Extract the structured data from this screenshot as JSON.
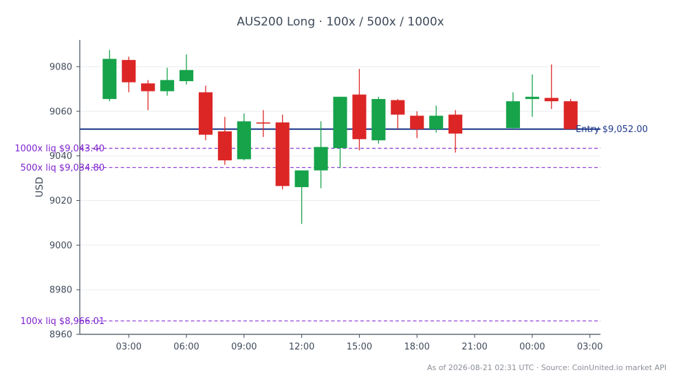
{
  "chart_data": {
    "type": "candlestick",
    "title": "AUS200 Long · 100x / 500x / 1000x",
    "ylabel": "USD",
    "xlabel": "",
    "ylim": [
      8960,
      9092
    ],
    "xlim": [
      0.45,
      27.55
    ],
    "y_ticks": [
      8960,
      8980,
      9000,
      9020,
      9040,
      9060,
      9080
    ],
    "x_ticks": [
      {
        "pos": 3,
        "label": "03:00"
      },
      {
        "pos": 6,
        "label": "06:00"
      },
      {
        "pos": 9,
        "label": "09:00"
      },
      {
        "pos": 12,
        "label": "12:00"
      },
      {
        "pos": 15,
        "label": "15:00"
      },
      {
        "pos": 18,
        "label": "18:00"
      },
      {
        "pos": 21,
        "label": "21:00"
      },
      {
        "pos": 24,
        "label": "00:00"
      },
      {
        "pos": 27,
        "label": "03:00"
      }
    ],
    "grid": "horizontal",
    "colors": {
      "up": "#16a34a",
      "down": "#dc2626",
      "entry": "#1e3a8a",
      "liq": "#7e22ce",
      "axis": "#3f4a5a",
      "grid": "#e9ecef"
    },
    "candles": [
      {
        "t": 2,
        "open": 9065.5,
        "high": 9087.5,
        "low": 9064.5,
        "close": 9083.5
      },
      {
        "t": 3,
        "open": 9083.0,
        "high": 9084.5,
        "low": 9068.5,
        "close": 9073.0
      },
      {
        "t": 4,
        "open": 9072.5,
        "high": 9074.0,
        "low": 9060.5,
        "close": 9069.0
      },
      {
        "t": 5,
        "open": 9069.0,
        "high": 9079.5,
        "low": 9067.0,
        "close": 9074.0
      },
      {
        "t": 6,
        "open": 9073.5,
        "high": 9085.5,
        "low": 9072.0,
        "close": 9078.5
      },
      {
        "t": 7,
        "open": 9068.5,
        "high": 9071.5,
        "low": 9047.0,
        "close": 9049.5
      },
      {
        "t": 8,
        "open": 9051.0,
        "high": 9057.5,
        "low": 9036.0,
        "close": 9038.0
      },
      {
        "t": 9,
        "open": 9038.5,
        "high": 9059.0,
        "low": 9038.0,
        "close": 9055.5
      },
      {
        "t": 10,
        "open": 9055.0,
        "high": 9060.5,
        "low": 9048.5,
        "close": 9054.5
      },
      {
        "t": 11,
        "open": 9055.0,
        "high": 9058.5,
        "low": 9025.0,
        "close": 9026.5
      },
      {
        "t": 12,
        "open": 9026.0,
        "high": 9033.5,
        "low": 9009.5,
        "close": 9033.5
      },
      {
        "t": 13,
        "open": 9033.5,
        "high": 9055.5,
        "low": 9025.5,
        "close": 9044.0
      },
      {
        "t": 14,
        "open": 9043.5,
        "high": 9066.5,
        "low": 9034.5,
        "close": 9066.5
      },
      {
        "t": 15,
        "open": 9067.5,
        "high": 9079.0,
        "low": 9042.5,
        "close": 9047.5
      },
      {
        "t": 16,
        "open": 9047.0,
        "high": 9066.5,
        "low": 9045.5,
        "close": 9065.5
      },
      {
        "t": 17,
        "open": 9065.0,
        "high": 9065.5,
        "low": 9052.0,
        "close": 9058.5
      },
      {
        "t": 18,
        "open": 9058.0,
        "high": 9060.0,
        "low": 9048.0,
        "close": 9052.0
      },
      {
        "t": 19,
        "open": 9052.0,
        "high": 9062.5,
        "low": 9050.5,
        "close": 9058.0
      },
      {
        "t": 20,
        "open": 9058.5,
        "high": 9060.5,
        "low": 9041.5,
        "close": 9050.0
      },
      {
        "t": 23,
        "open": 9052.5,
        "high": 9068.5,
        "low": 9052.0,
        "close": 9064.5
      },
      {
        "t": 24,
        "open": 9065.5,
        "high": 9076.5,
        "low": 9057.5,
        "close": 9066.5
      },
      {
        "t": 25,
        "open": 9066.0,
        "high": 9081.0,
        "low": 9061.0,
        "close": 9064.5
      },
      {
        "t": 26,
        "open": 9064.5,
        "high": 9065.5,
        "low": 9052.0,
        "close": 9052.0
      }
    ],
    "reference_lines": [
      {
        "name": "entry",
        "value": 9052.0,
        "label": "Entry $9,052.00",
        "style": "solid"
      },
      {
        "name": "liq-1000x",
        "value": 9043.4,
        "label": "1000x liq $9,043.40",
        "style": "dashed"
      },
      {
        "name": "liq-500x",
        "value": 9034.8,
        "label": "500x liq $9,034.80",
        "style": "dashed"
      },
      {
        "name": "liq-100x",
        "value": 8966.01,
        "label": "100x liq $8,966.01",
        "style": "dashed"
      }
    ]
  },
  "footer": "As of 2026-08-21 02:31 UTC · Source: CoinUnited.io market API"
}
